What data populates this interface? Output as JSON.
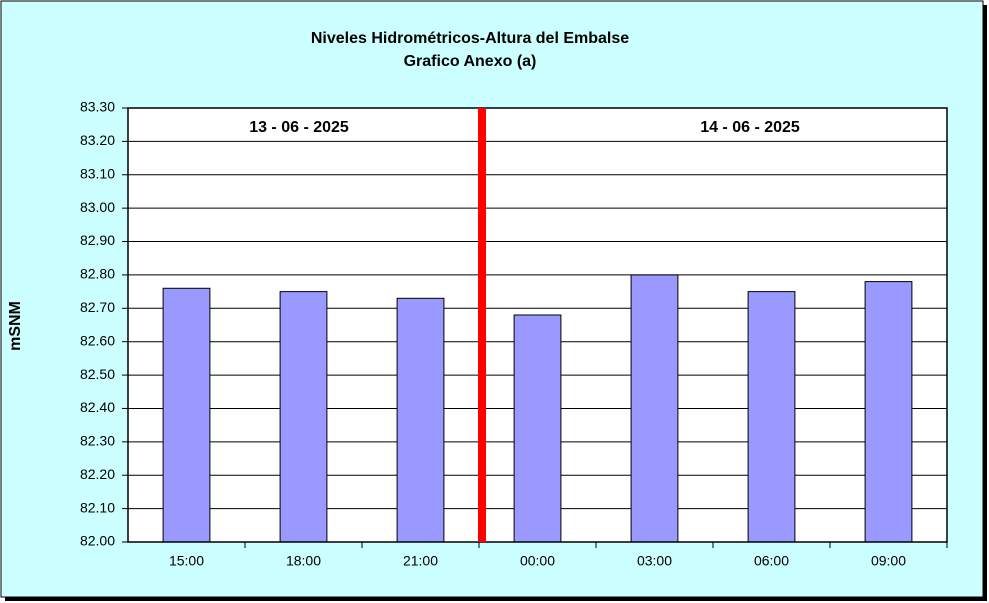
{
  "chart_data": {
    "type": "bar",
    "title": "Niveles Hidrométricos-Altura del Embalse",
    "subtitle": "Grafico Anexo (a)",
    "y_label": "mSNM",
    "annotations": [
      "13 - 06 - 2025",
      "14 - 06 - 2025"
    ],
    "categories": [
      "15:00",
      "18:00",
      "21:00",
      "00:00",
      "03:00",
      "06:00",
      "09:00"
    ],
    "values": [
      82.76,
      82.75,
      82.73,
      82.68,
      82.8,
      82.75,
      82.78
    ],
    "color": "#9999ff",
    "ylim": [
      82.0,
      83.3
    ],
    "yticks": [
      {
        "value": 82.0,
        "label": "82.00"
      },
      {
        "value": 82.1,
        "label": "82.10"
      },
      {
        "value": 82.2,
        "label": "82.20"
      },
      {
        "value": 82.3,
        "label": "82.30"
      },
      {
        "value": 82.4,
        "label": "82.40"
      },
      {
        "value": 82.5,
        "label": "82.50"
      },
      {
        "value": 82.6,
        "label": "82.60"
      },
      {
        "value": 82.7,
        "label": "82.70"
      },
      {
        "value": 82.8,
        "label": "82.80"
      },
      {
        "value": 82.9,
        "label": "82.90"
      },
      {
        "value": 83.0,
        "label": "83.00"
      },
      {
        "value": 83.1,
        "label": "83.10"
      },
      {
        "value": 83.2,
        "label": "83.20"
      },
      {
        "value": 83.3,
        "label": "83.30"
      }
    ],
    "grid": true
  }
}
